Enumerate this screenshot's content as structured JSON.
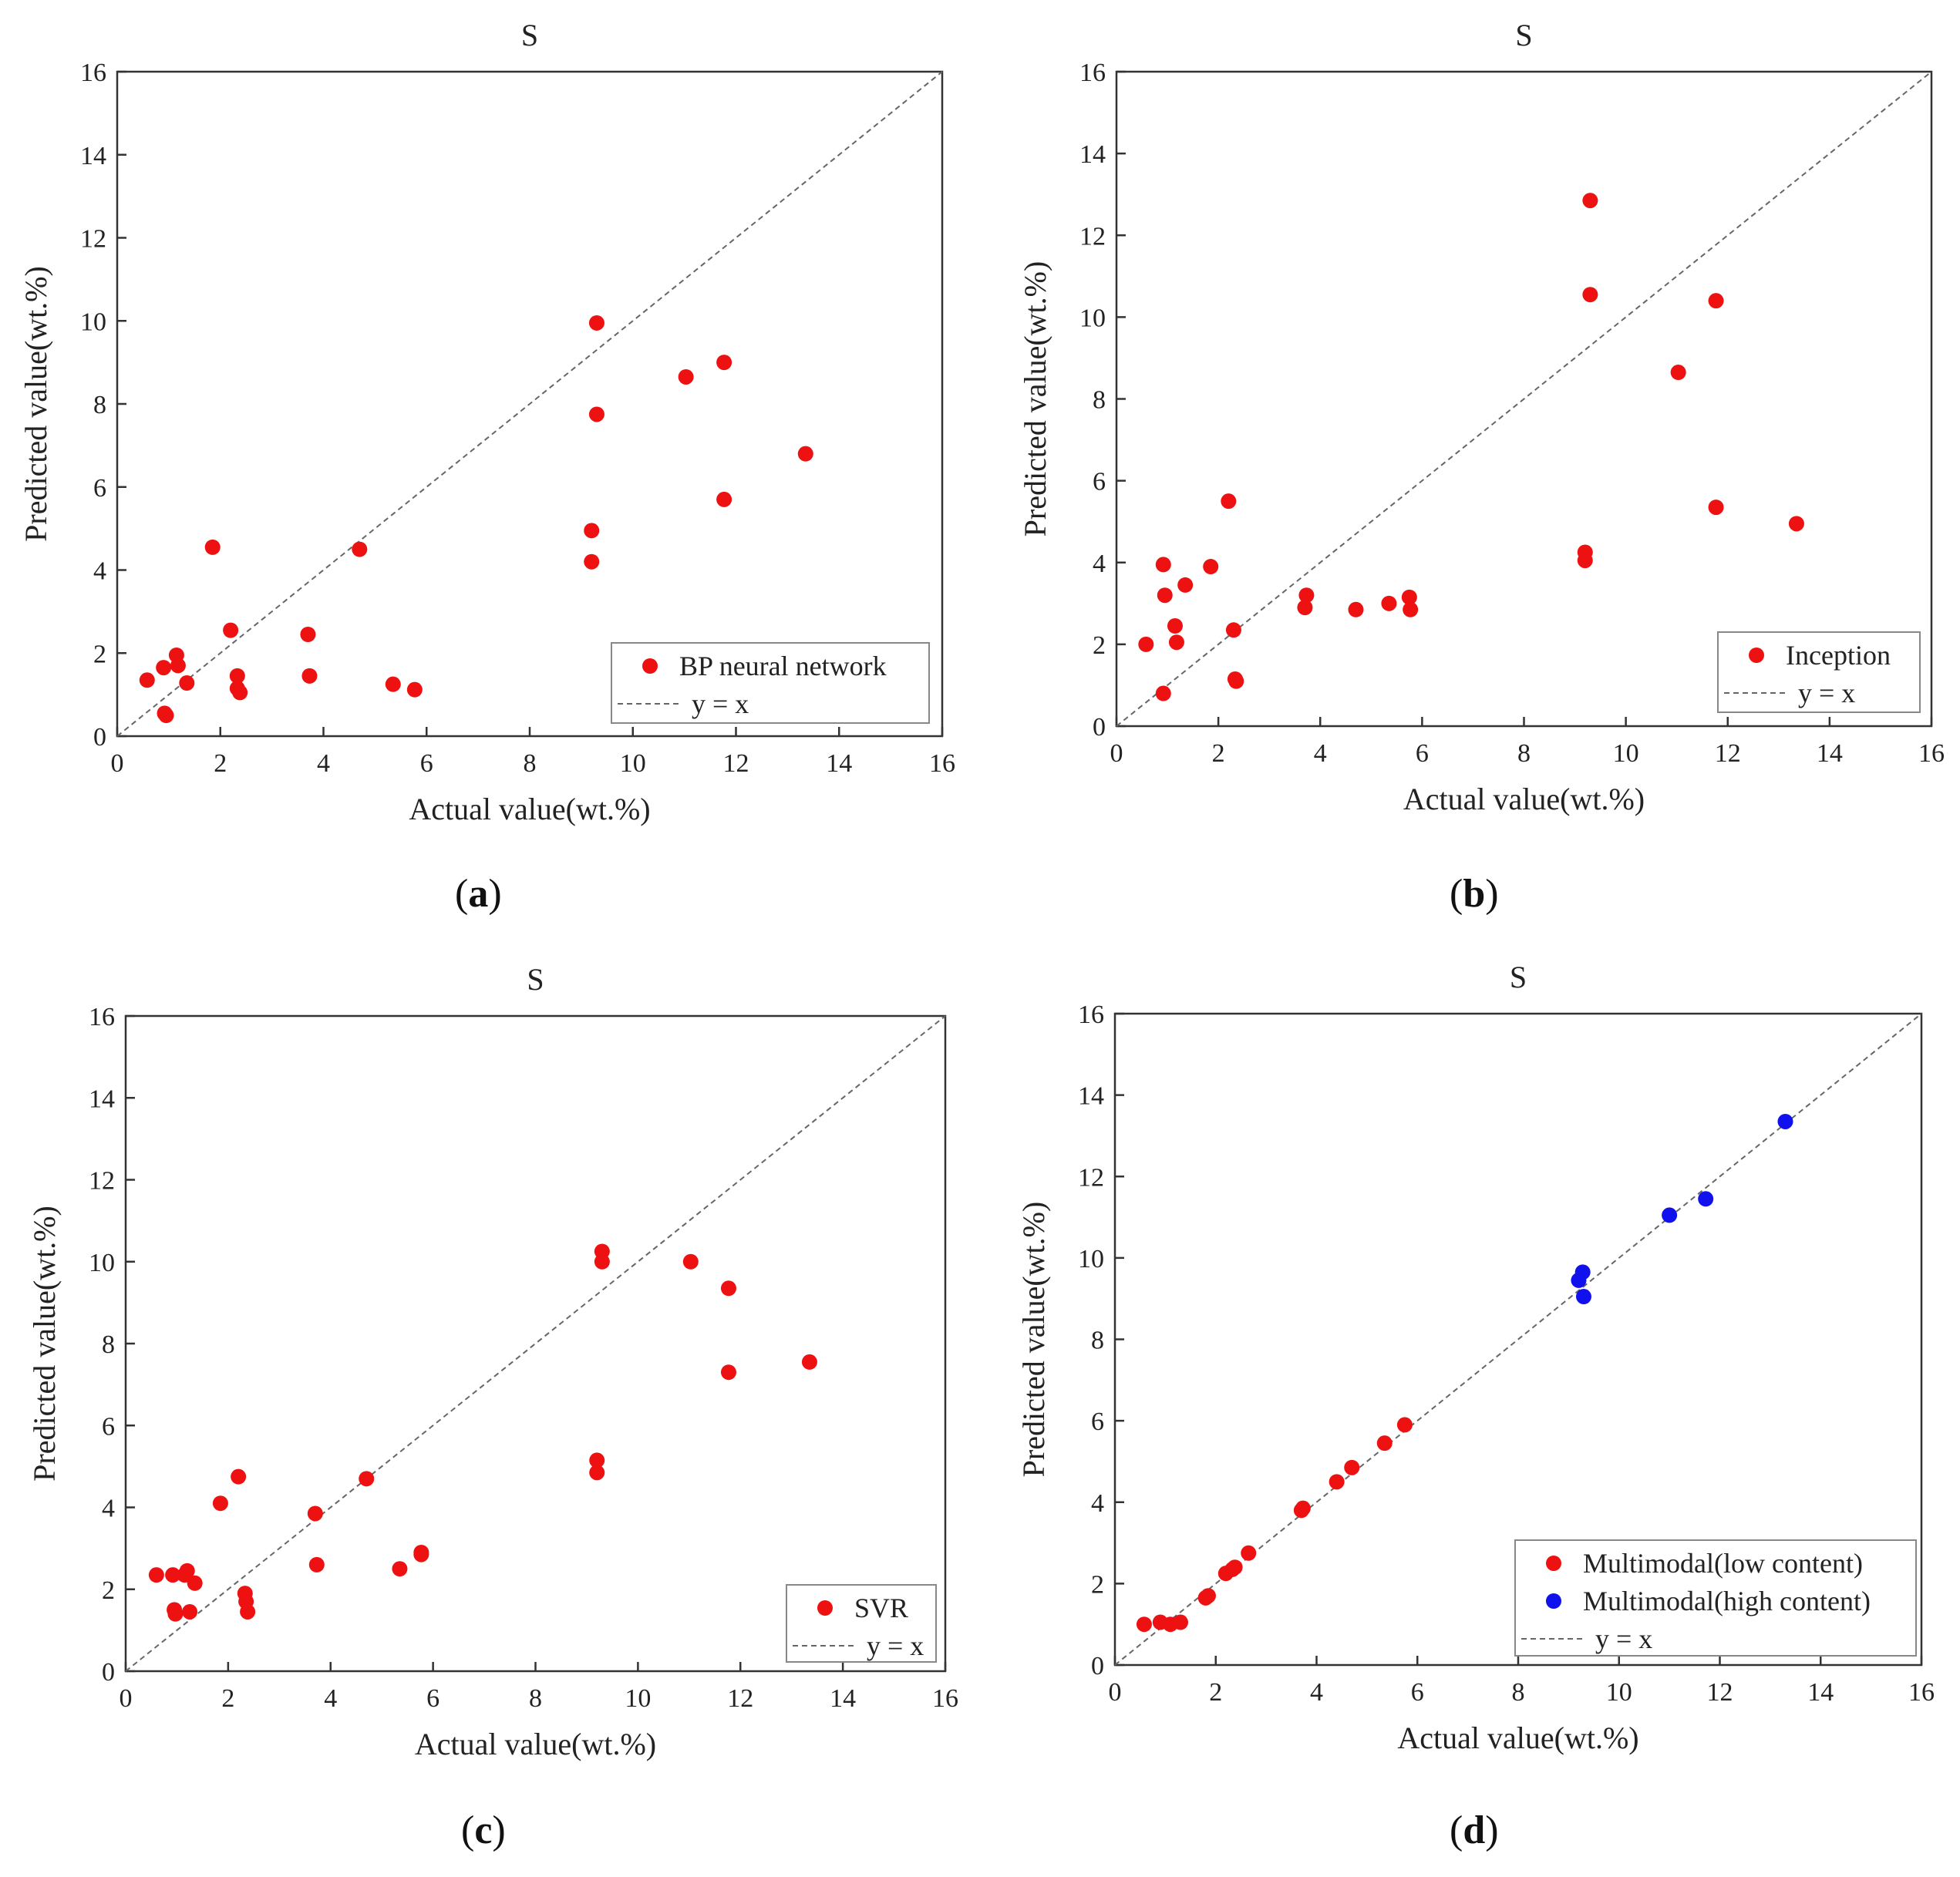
{
  "figure": {
    "captions": [
      "a",
      "b",
      "c",
      "d"
    ]
  },
  "colors": {
    "low": "#ee1111",
    "high": "#1111ee",
    "diag": "#666666",
    "axis": "#333333"
  },
  "chart_data": [
    {
      "type": "scatter",
      "panel": "a",
      "title": "S",
      "xlabel": "Actual value(wt.%)",
      "ylabel": "Predicted value(wt.%)",
      "xlim": [
        0,
        16
      ],
      "ylim": [
        0,
        16
      ],
      "xticks": [
        0,
        2,
        4,
        6,
        8,
        10,
        12,
        14,
        16
      ],
      "yticks": [
        0,
        2,
        4,
        6,
        8,
        10,
        12,
        14,
        16
      ],
      "legend_position": "bottom-right",
      "series": [
        {
          "name": "BP neural network",
          "color": "#ee1111",
          "x": [
            0.58,
            0.9,
            0.92,
            0.95,
            1.15,
            1.18,
            1.35,
            1.85,
            2.2,
            2.33,
            2.33,
            2.38,
            3.7,
            3.73,
            4.7,
            5.35,
            5.77,
            9.2,
            9.2,
            9.3,
            9.3,
            11.03,
            11.77,
            11.77,
            13.35
          ],
          "y": [
            1.35,
            1.65,
            0.55,
            0.5,
            1.95,
            1.7,
            1.28,
            4.55,
            2.55,
            1.45,
            1.15,
            1.05,
            2.45,
            1.45,
            4.5,
            1.25,
            1.12,
            4.95,
            4.2,
            9.95,
            7.75,
            8.65,
            9.0,
            5.7,
            6.8
          ]
        },
        {
          "name": "y = x",
          "type": "line",
          "style": "dashed",
          "color": "#666666",
          "x": [
            0,
            16
          ],
          "y": [
            0,
            16
          ]
        }
      ]
    },
    {
      "type": "scatter",
      "panel": "b",
      "title": "S",
      "xlabel": "Actual value(wt.%)",
      "ylabel": "Predicted value(wt.%)",
      "xlim": [
        0,
        16
      ],
      "ylim": [
        0,
        16
      ],
      "xticks": [
        0,
        2,
        4,
        6,
        8,
        10,
        12,
        14,
        16
      ],
      "yticks": [
        0,
        2,
        4,
        6,
        8,
        10,
        12,
        14,
        16
      ],
      "legend_position": "bottom-right",
      "series": [
        {
          "name": "Inception",
          "color": "#ee1111",
          "x": [
            0.58,
            0.92,
            0.92,
            0.95,
            1.15,
            1.18,
            1.35,
            1.85,
            2.2,
            2.3,
            2.33,
            2.35,
            3.7,
            3.73,
            4.7,
            5.35,
            5.75,
            5.77,
            9.2,
            9.2,
            9.3,
            9.3,
            11.03,
            11.77,
            11.77,
            13.35
          ],
          "y": [
            2.0,
            0.8,
            3.95,
            3.2,
            2.45,
            2.05,
            3.45,
            3.9,
            5.5,
            2.35,
            1.15,
            1.1,
            2.9,
            3.2,
            2.85,
            3.0,
            3.15,
            2.85,
            4.25,
            4.05,
            12.85,
            10.55,
            8.65,
            10.4,
            5.35,
            4.95
          ]
        },
        {
          "name": "y = x",
          "type": "line",
          "style": "dashed",
          "color": "#666666",
          "x": [
            0,
            16
          ],
          "y": [
            0,
            16
          ]
        }
      ]
    },
    {
      "type": "scatter",
      "panel": "c",
      "title": "S",
      "xlabel": "Actual value(wt.%)",
      "ylabel": "Predicted value(wt.%)",
      "xlim": [
        0,
        16
      ],
      "ylim": [
        0,
        16
      ],
      "xticks": [
        0,
        2,
        4,
        6,
        8,
        10,
        12,
        14,
        16
      ],
      "yticks": [
        0,
        2,
        4,
        6,
        8,
        10,
        12,
        14,
        16
      ],
      "legend_position": "bottom-right",
      "series": [
        {
          "name": "SVR",
          "color": "#ee1111",
          "x": [
            0.6,
            0.92,
            0.95,
            0.97,
            1.15,
            1.2,
            1.25,
            1.35,
            1.85,
            2.2,
            2.33,
            2.35,
            2.38,
            3.7,
            3.73,
            4.7,
            5.35,
            5.77,
            5.77,
            9.2,
            9.2,
            9.3,
            9.3,
            11.03,
            11.77,
            11.77,
            13.35
          ],
          "y": [
            2.35,
            2.35,
            1.5,
            1.4,
            2.35,
            2.45,
            1.45,
            2.15,
            4.1,
            4.75,
            1.9,
            1.7,
            1.45,
            3.85,
            2.6,
            4.7,
            2.5,
            2.9,
            2.85,
            5.15,
            4.85,
            10.25,
            10.0,
            10.0,
            9.35,
            7.3,
            7.55
          ]
        },
        {
          "name": "y = x",
          "type": "line",
          "style": "dashed",
          "color": "#666666",
          "x": [
            0,
            16
          ],
          "y": [
            0,
            16
          ]
        }
      ]
    },
    {
      "type": "scatter",
      "panel": "d",
      "title": "S",
      "xlabel": "Actual value(wt.%)",
      "ylabel": "Predicted value(wt.%)",
      "xlim": [
        0,
        16
      ],
      "ylim": [
        0,
        16
      ],
      "xticks": [
        0,
        2,
        4,
        6,
        8,
        10,
        12,
        14,
        16
      ],
      "yticks": [
        0,
        2,
        4,
        6,
        8,
        10,
        12,
        14,
        16
      ],
      "legend_position": "bottom-right",
      "series": [
        {
          "name": "Multimodal(low content)",
          "color": "#ee1111",
          "x": [
            0.58,
            0.9,
            1.1,
            1.3,
            1.8,
            1.85,
            2.2,
            2.33,
            2.38,
            2.65,
            3.7,
            3.73,
            4.4,
            4.7,
            5.35,
            5.75
          ],
          "y": [
            1.0,
            1.05,
            1.0,
            1.05,
            1.65,
            1.7,
            2.25,
            2.35,
            2.4,
            2.75,
            3.8,
            3.85,
            4.5,
            4.85,
            5.45,
            5.9
          ]
        },
        {
          "name": "Multimodal(high content)",
          "color": "#1111ee",
          "x": [
            9.2,
            9.28,
            9.3,
            11.0,
            11.72,
            13.3
          ],
          "y": [
            9.45,
            9.65,
            9.05,
            11.05,
            11.45,
            13.35
          ]
        },
        {
          "name": "y = x",
          "type": "line",
          "style": "dashed",
          "color": "#666666",
          "x": [
            0,
            16
          ],
          "y": [
            0,
            16
          ]
        }
      ]
    }
  ]
}
